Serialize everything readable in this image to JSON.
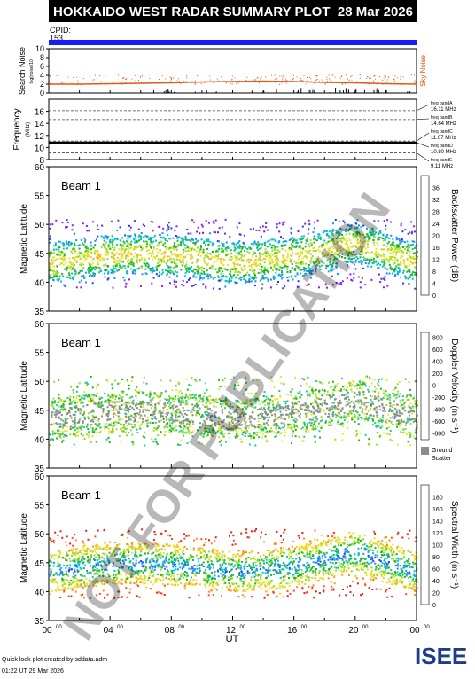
{
  "header": {
    "title": "HOKKAIDO WEST RADAR SUMMARY PLOT",
    "date": "28 Mar 2026",
    "cpid_label": "CPID:",
    "cpid_value": "153"
  },
  "colors": {
    "header_bg": "#000000",
    "header_fg": "#ffffff",
    "cpid_bar": "#1a1aff",
    "noise_line": "#e05a1a",
    "noise_label": "#e05a1a",
    "ground_scatter": "#8c8c8c"
  },
  "watermark": "NOT FOR PUBLICATION",
  "footer": {
    "line1": "Quick look plot created by sddata.adm",
    "line2": "01:22 UT 29 Mar 2026",
    "logo_text": "ISEE"
  },
  "chart_data": [
    {
      "type": "line",
      "panel": "search-noise",
      "ylabel": "Search Noise",
      "ylabel_sub": "log(noise/10)",
      "right_label": "Sky Noise",
      "ylim": [
        0,
        10
      ],
      "yticks": [
        "0",
        "2",
        "4",
        "6",
        "8",
        "10"
      ],
      "x": [
        0,
        2,
        4,
        6,
        8,
        10,
        12,
        14,
        16,
        18,
        20,
        22,
        24
      ],
      "series": [
        {
          "name": "Sky Noise",
          "values": [
            2.0,
            2.0,
            2.1,
            2.2,
            2.3,
            2.5,
            2.6,
            2.7,
            2.6,
            2.4,
            2.3,
            2.1,
            2.0
          ]
        }
      ]
    },
    {
      "type": "line",
      "panel": "frequency",
      "ylabel": "Frequency",
      "ylabel_sub": "(MHz)",
      "ylim": [
        8,
        18
      ],
      "yticks": [
        "8",
        "10",
        "12",
        "14",
        "16"
      ],
      "x": [
        0,
        24
      ],
      "series": [
        {
          "name": "",
          "values": [
            10.8,
            10.8
          ]
        }
      ],
      "bands": [
        {
          "label": "freq bandA",
          "freq": "16.11 MHz",
          "value": 16.11
        },
        {
          "label": "freq bandB",
          "freq": "14.64 MHz",
          "value": 14.64
        },
        {
          "label": "freq bandC",
          "freq": "11.07 MHz",
          "value": 11.07
        },
        {
          "label": "freq bandD",
          "freq": "10.80 MHz",
          "value": 10.8
        },
        {
          "label": "freq bandE",
          "freq": "9.11 MHz",
          "value": 9.11
        }
      ]
    },
    {
      "type": "heatmap",
      "panel": "power",
      "beam_label": "Beam  1",
      "ylabel": "Magnetic Latitude",
      "ylim": [
        35,
        60
      ],
      "yticks": [
        "35",
        "40",
        "45",
        "50",
        "55",
        "60"
      ],
      "colorbar_label": "Backscatter Power (dB)",
      "colorbar_ticks": [
        "0",
        "4",
        "8",
        "12",
        "16",
        "20",
        "24",
        "28",
        "32",
        "36"
      ]
    },
    {
      "type": "heatmap",
      "panel": "velocity",
      "beam_label": "Beam  1",
      "ylabel": "Magnetic Latitude",
      "ylim": [
        35,
        60
      ],
      "yticks": [
        "35",
        "40",
        "45",
        "50",
        "55",
        "60"
      ],
      "colorbar_label": "Doppler Velocity (m s⁻¹)",
      "colorbar_ticks": [
        "800",
        "600",
        "400",
        "200",
        "0",
        "-200",
        "-400",
        "-600",
        "-800"
      ],
      "ground_label_1": "Ground",
      "ground_label_2": "Scatter"
    },
    {
      "type": "heatmap",
      "panel": "width",
      "beam_label": "Beam  1",
      "ylabel": "Magnetic Latitude",
      "ylim": [
        35,
        60
      ],
      "yticks": [
        "35",
        "40",
        "45",
        "50",
        "55",
        "60"
      ],
      "colorbar_label": "Spectral Width (m s⁻¹)",
      "colorbar_ticks": [
        "0",
        "20",
        "40",
        "60",
        "80",
        "100",
        "120",
        "140",
        "160",
        "180"
      ]
    }
  ],
  "x_axis": {
    "label": "UT",
    "ticks": [
      {
        "h": "00",
        "m": "00",
        "value": 0
      },
      {
        "h": "04",
        "m": "00",
        "value": 4
      },
      {
        "h": "08",
        "m": "00",
        "value": 8
      },
      {
        "h": "12",
        "m": "00",
        "value": 12
      },
      {
        "h": "16",
        "m": "00",
        "value": 16
      },
      {
        "h": "20",
        "m": "00",
        "value": 20
      },
      {
        "h": "00",
        "m": "00",
        "value": 24
      }
    ]
  }
}
